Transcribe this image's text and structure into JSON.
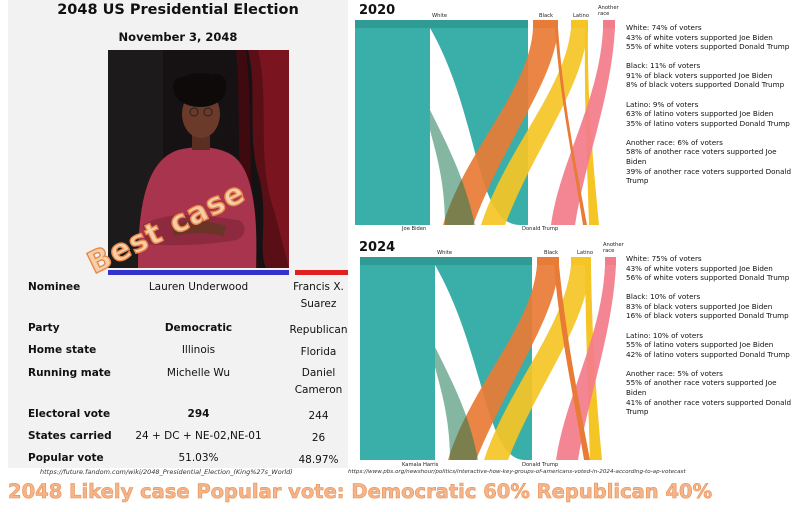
{
  "infobox": {
    "title": "2048 US Presidential Election",
    "date": "November 3, 2048",
    "stamp": "Best case",
    "rows": {
      "nominee": {
        "label": "Nominee",
        "dem": "Lauren Underwood",
        "rep_line1": "Francis X.",
        "rep_line2": "Suarez"
      },
      "party": {
        "label": "Party",
        "dem": "Democratic",
        "rep": "Republican"
      },
      "home_state": {
        "label": "Home state",
        "dem": "Illinois",
        "rep": "Florida"
      },
      "running_mate": {
        "label": "Running mate",
        "dem": "Michelle Wu",
        "rep_line1": "Daniel",
        "rep_line2": "Cameron"
      },
      "electoral_vote": {
        "label": "Electoral vote",
        "dem": "294",
        "rep": "244"
      },
      "states_carried": {
        "label": "States carried",
        "dem": "24 + DC + NE-02,NE-01",
        "rep": "26"
      },
      "popular_vote": {
        "label": "Popular vote",
        "dem": "51.03%",
        "rep": "48.97%"
      }
    },
    "source": "https://future.fandom.com/wiki/2048_Presidential_Election_(King%27s_World)",
    "colors": {
      "democratic": "#3333cc",
      "republican": "#e02020"
    }
  },
  "flows": {
    "colors": {
      "white": "#3aafa9",
      "black": "#e87b35",
      "latino": "#f5c425",
      "another": "#f37c8a",
      "header": "#2f9b94"
    },
    "panel_2020": {
      "year": "2020",
      "groups": [
        "White",
        "Black",
        "Latino",
        "Another race"
      ],
      "candidates": [
        "Joe Biden",
        "Donald Trump"
      ],
      "legend": [
        [
          "White: 74% of voters",
          "43% of white voters supported Joe Biden",
          "55% of white voters supported Donald Trump"
        ],
        [
          "Black: 11% of voters",
          "91% of black voters supported Joe Biden",
          "8% of black voters supported Donald Trump"
        ],
        [
          "Latino: 9% of voters",
          "63% of latino voters supported Joe Biden",
          "35% of latino voters supported Donald Trump"
        ],
        [
          "Another race: 6% of voters",
          "58% of another race voters supported Joe Biden",
          "39% of another race voters supported Donald Trump"
        ]
      ]
    },
    "panel_2024": {
      "year": "2024",
      "groups": [
        "White",
        "Black",
        "Latino",
        "Another race"
      ],
      "candidates": [
        "Kamala Harris",
        "Donald Trump"
      ],
      "legend": [
        [
          "White: 75% of voters",
          "43% of white voters supported Joe Biden",
          "56% of white voters supported Donald Trump"
        ],
        [
          "Black: 10% of voters",
          "83% of black voters supported Joe Biden",
          "16% of black voters supported Donald Trump"
        ],
        [
          "Latino: 10% of voters",
          "55% of latino voters supported Joe Biden",
          "42% of latino voters supported Donald Trump"
        ],
        [
          "Another race: 5% of voters",
          "55% of another race voters supported Joe Biden",
          "41% of another race voters supported Donald Trump"
        ]
      ]
    },
    "source": "https://www.pbs.org/newshour/politics/interactive-how-key-groups-of-americans-voted-in-2024-according-to-ap-votecast"
  },
  "banner": "2048 Likely case Popular vote:  Democratic 60%   Republican 40%"
}
